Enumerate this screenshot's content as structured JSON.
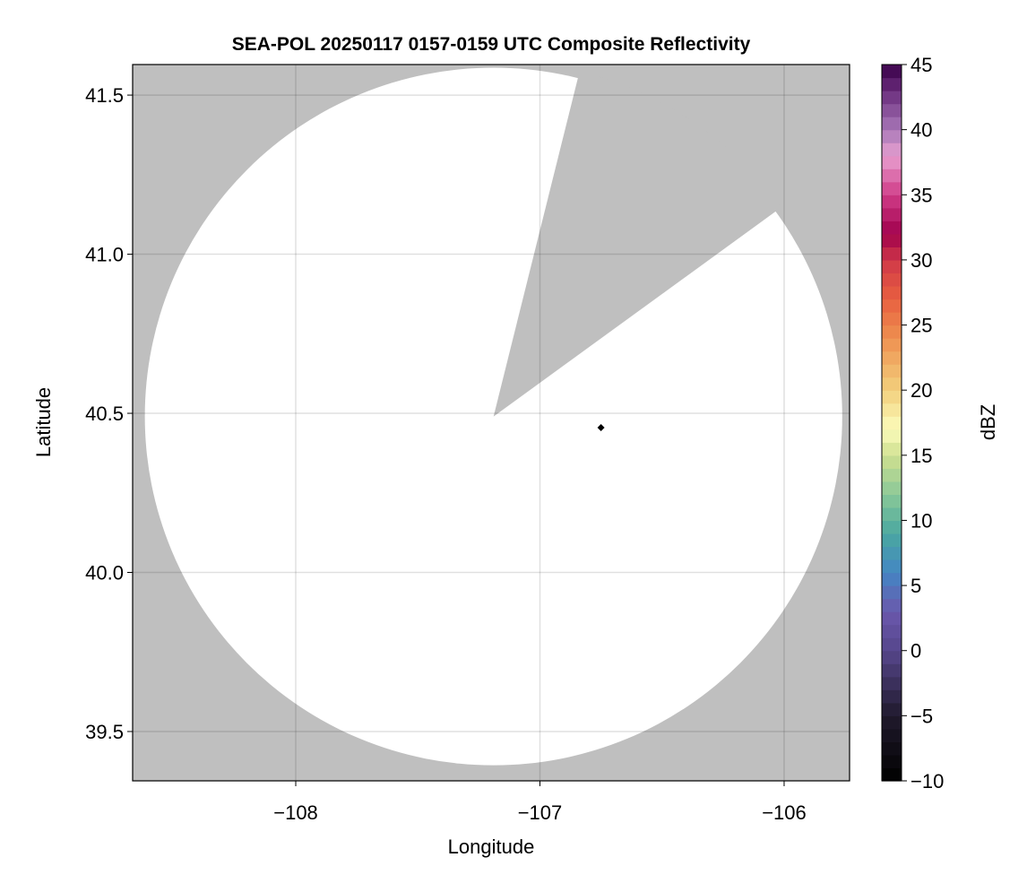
{
  "chart_data": {
    "type": "heatmap",
    "title": "SEA-POL 20250117 0157-0159 UTC Composite Reflectivity",
    "xlabel": "Longitude",
    "ylabel": "Latitude",
    "xlim": [
      -108.668,
      -105.732
    ],
    "ylim": [
      39.345,
      41.596
    ],
    "xticks": [
      -108,
      -107,
      -106
    ],
    "xtick_labels": [
      "−108",
      "−107",
      "−106"
    ],
    "yticks": [
      39.5,
      40.0,
      40.5,
      41.0,
      41.5
    ],
    "ytick_labels": [
      "39.5",
      "40.0",
      "40.5",
      "41.0",
      "41.5"
    ],
    "grid": true,
    "background_color": "#bfbfbf",
    "coverage_color": "#ffffff",
    "radar": {
      "center": {
        "lon": -107.19,
        "lat": 40.49
      },
      "range_deg_lon": 1.428,
      "blocked_sector_bearing_deg": [
        14,
        54
      ]
    },
    "marker": {
      "lon": -106.75,
      "lat": 40.455,
      "shape": "diamond",
      "color": "#000000"
    },
    "reflectivity_values": "none (no echoes plotted)",
    "colorbar": {
      "label": "dBZ",
      "range": [
        -10,
        45
      ],
      "ticks": [
        -10,
        -5,
        0,
        5,
        10,
        15,
        20,
        25,
        30,
        35,
        40,
        45
      ],
      "tick_labels": [
        "−10",
        "−5",
        "0",
        "5",
        "10",
        "15",
        "20",
        "25",
        "30",
        "35",
        "40",
        "45"
      ],
      "bins": 55,
      "stops": [
        {
          "v": -10,
          "c": "#000000"
        },
        {
          "v": -5,
          "c": "#201a2c"
        },
        {
          "v": 0,
          "c": "#56468c"
        },
        {
          "v": 3,
          "c": "#6a58ac"
        },
        {
          "v": 6,
          "c": "#4486c4"
        },
        {
          "v": 9,
          "c": "#4aa8a0"
        },
        {
          "v": 12,
          "c": "#8ac898"
        },
        {
          "v": 15,
          "c": "#cfe090"
        },
        {
          "v": 17,
          "c": "#fcfcbc"
        },
        {
          "v": 20,
          "c": "#f2d07c"
        },
        {
          "v": 24,
          "c": "#ee9050"
        },
        {
          "v": 27,
          "c": "#e86040"
        },
        {
          "v": 30,
          "c": "#d03848"
        },
        {
          "v": 32,
          "c": "#a0004c"
        },
        {
          "v": 35,
          "c": "#d03c88"
        },
        {
          "v": 38,
          "c": "#e8a0d0"
        },
        {
          "v": 40,
          "c": "#a878b8"
        },
        {
          "v": 43,
          "c": "#6a2c7c"
        },
        {
          "v": 45,
          "c": "#380048"
        }
      ]
    }
  }
}
